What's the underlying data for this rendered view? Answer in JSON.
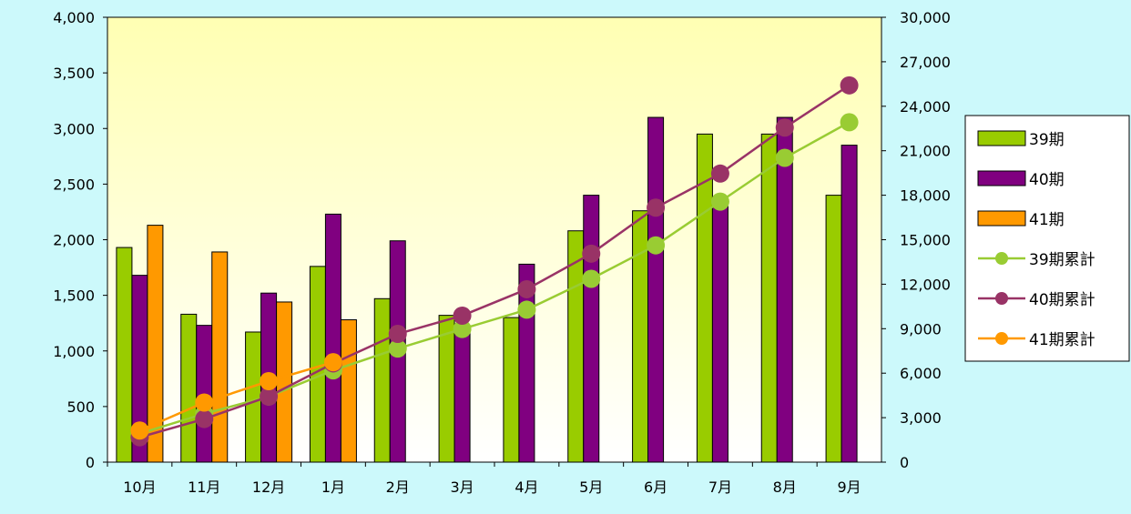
{
  "chart_data": {
    "type": "bar",
    "categories": [
      "10月",
      "11月",
      "12月",
      "1月",
      "2月",
      "3月",
      "4月",
      "5月",
      "6月",
      "7月",
      "8月",
      "9月"
    ],
    "series": [
      {
        "name": "39期",
        "kind": "bar",
        "axis": "left",
        "color": "#99cc00",
        "values": [
          1930,
          1330,
          1170,
          1760,
          1470,
          1320,
          1300,
          2080,
          2260,
          2950,
          2950,
          2400
        ]
      },
      {
        "name": "40期",
        "kind": "bar",
        "axis": "left",
        "color": "#800080",
        "values": [
          1680,
          1230,
          1520,
          2230,
          1990,
          1230,
          1780,
          2400,
          3100,
          2300,
          3100,
          2850
        ]
      },
      {
        "name": "41期",
        "kind": "bar",
        "axis": "left",
        "color": "#ff9900",
        "values": [
          2130,
          1890,
          1440,
          1280,
          null,
          null,
          null,
          null,
          null,
          null,
          null,
          null
        ]
      },
      {
        "name": "39期累計",
        "kind": "line",
        "axis": "right",
        "color": "#99cc33",
        "values": [
          1930,
          3260,
          4430,
          6190,
          7660,
          8980,
          10280,
          12360,
          14620,
          17570,
          20520,
          22920
        ]
      },
      {
        "name": "40期累計",
        "kind": "line",
        "axis": "right",
        "color": "#993366",
        "values": [
          1680,
          2910,
          4430,
          6660,
          8650,
          9880,
          11660,
          14060,
          17160,
          19460,
          22560,
          25410
        ]
      },
      {
        "name": "41期累計",
        "kind": "line",
        "axis": "right",
        "color": "#ff9900",
        "values": [
          2130,
          4020,
          5460,
          6740,
          null,
          null,
          null,
          null,
          null,
          null,
          null,
          null
        ]
      }
    ],
    "y_left": {
      "min": 0,
      "max": 4000,
      "ticks": [
        "0",
        "500",
        "1,000",
        "1,500",
        "2,000",
        "2,500",
        "3,000",
        "3,500",
        "4,000"
      ]
    },
    "y_right": {
      "min": 0,
      "max": 30000,
      "ticks": [
        "0",
        "3,000",
        "6,000",
        "9,000",
        "12,000",
        "15,000",
        "18,000",
        "21,000",
        "24,000",
        "27,000",
        "30,000"
      ]
    },
    "grid": false,
    "legend_position": "right",
    "plot_background": [
      "#ffffb3",
      "#ffffff"
    ]
  }
}
